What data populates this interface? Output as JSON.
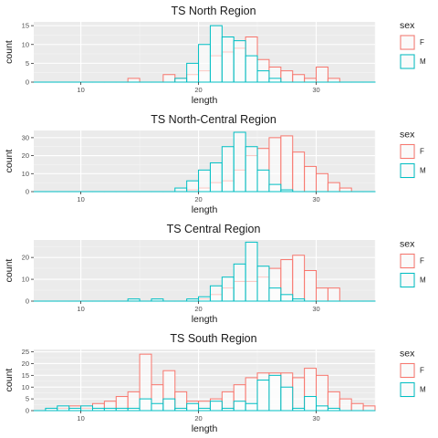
{
  "colors": {
    "F": "#F8766D",
    "M": "#00BFC4",
    "panel": "#EBEBEB",
    "grid_major": "#FFFFFF",
    "grid_minor": "#F5F5F5"
  },
  "chart_data": [
    {
      "type": "bar",
      "title": "TS North Region",
      "xlabel": "length",
      "ylabel": "count",
      "xlim": [
        6,
        35
      ],
      "ylim": [
        0,
        16
      ],
      "x_ticks": [
        10,
        20,
        30
      ],
      "y_ticks": [
        0,
        5,
        10,
        15
      ],
      "bin_width": 1,
      "bin_starts": [
        6,
        7,
        8,
        9,
        10,
        11,
        12,
        13,
        14,
        15,
        16,
        17,
        18,
        19,
        20,
        21,
        22,
        23,
        24,
        25,
        26,
        27,
        28,
        29,
        30,
        31,
        32,
        33,
        34
      ],
      "legend": {
        "title": "sex",
        "position": "right"
      },
      "series": [
        {
          "name": "F",
          "values": [
            0,
            0,
            0,
            0,
            0,
            0,
            0,
            0,
            1,
            0,
            0,
            2,
            1,
            2,
            3,
            7,
            8,
            9,
            12,
            6,
            4,
            3,
            2,
            1,
            4,
            1,
            0,
            0,
            0
          ]
        },
        {
          "name": "M",
          "values": [
            0,
            0,
            0,
            0,
            0,
            0,
            0,
            0,
            0,
            0,
            0,
            0,
            1,
            5,
            10,
            15,
            12,
            11,
            7,
            3,
            1,
            0,
            0,
            0,
            0,
            0,
            0,
            0,
            0
          ]
        }
      ]
    },
    {
      "type": "bar",
      "title": "TS North-Central Region",
      "xlabel": "length",
      "ylabel": "count",
      "xlim": [
        6,
        35
      ],
      "ylim": [
        0,
        34
      ],
      "x_ticks": [
        10,
        20,
        30
      ],
      "y_ticks": [
        0,
        10,
        20,
        30
      ],
      "bin_width": 1,
      "bin_starts": [
        6,
        7,
        8,
        9,
        10,
        11,
        12,
        13,
        14,
        15,
        16,
        17,
        18,
        19,
        20,
        21,
        22,
        23,
        24,
        25,
        26,
        27,
        28,
        29,
        30,
        31,
        32,
        33,
        34
      ],
      "legend": {
        "title": "sex",
        "position": "right"
      },
      "series": [
        {
          "name": "F",
          "values": [
            0,
            0,
            0,
            0,
            0,
            0,
            0,
            0,
            0,
            0,
            0,
            0,
            0,
            1,
            2,
            5,
            6,
            12,
            20,
            24,
            30,
            31,
            22,
            14,
            10,
            5,
            2,
            0,
            0
          ]
        },
        {
          "name": "M",
          "values": [
            0,
            0,
            0,
            0,
            0,
            0,
            0,
            0,
            0,
            0,
            0,
            0,
            2,
            6,
            12,
            16,
            25,
            33,
            25,
            12,
            4,
            1,
            0,
            0,
            0,
            0,
            0,
            0,
            0
          ]
        }
      ]
    },
    {
      "type": "bar",
      "title": "TS Central Region",
      "xlabel": "length",
      "ylabel": "count",
      "xlim": [
        6,
        35
      ],
      "ylim": [
        0,
        28
      ],
      "x_ticks": [
        10,
        20,
        30
      ],
      "y_ticks": [
        0,
        10,
        20
      ],
      "bin_width": 1,
      "bin_starts": [
        6,
        7,
        8,
        9,
        10,
        11,
        12,
        13,
        14,
        15,
        16,
        17,
        18,
        19,
        20,
        21,
        22,
        23,
        24,
        25,
        26,
        27,
        28,
        29,
        30,
        31,
        32,
        33,
        34
      ],
      "legend": {
        "title": "sex",
        "position": "right"
      },
      "series": [
        {
          "name": "F",
          "values": [
            0,
            0,
            0,
            0,
            0,
            0,
            0,
            0,
            0,
            0,
            0,
            0,
            0,
            0,
            1,
            3,
            6,
            9,
            9,
            11,
            15,
            19,
            21,
            14,
            6,
            6,
            0,
            0,
            0
          ]
        },
        {
          "name": "M",
          "values": [
            0,
            0,
            0,
            0,
            0,
            0,
            0,
            0,
            1,
            0,
            1,
            0,
            0,
            1,
            2,
            7,
            11,
            17,
            27,
            16,
            6,
            3,
            1,
            0,
            0,
            0,
            0,
            0,
            0
          ]
        }
      ]
    },
    {
      "type": "bar",
      "title": "TS South Region",
      "xlabel": "length",
      "ylabel": "count",
      "xlim": [
        6,
        35
      ],
      "ylim": [
        0,
        26
      ],
      "x_ticks": [
        10,
        20,
        30
      ],
      "y_ticks": [
        0,
        5,
        10,
        15,
        20,
        25
      ],
      "bin_width": 1,
      "bin_starts": [
        6,
        7,
        8,
        9,
        10,
        11,
        12,
        13,
        14,
        15,
        16,
        17,
        18,
        19,
        20,
        21,
        22,
        23,
        24,
        25,
        26,
        27,
        28,
        29,
        30,
        31,
        32,
        33,
        34
      ],
      "legend": {
        "title": "sex",
        "position": "right"
      },
      "series": [
        {
          "name": "F",
          "values": [
            0,
            0,
            1,
            2,
            1,
            3,
            4,
            6,
            8,
            24,
            11,
            17,
            8,
            4,
            4,
            5,
            8,
            11,
            14,
            16,
            16,
            16,
            14,
            18,
            15,
            8,
            5,
            3,
            2
          ]
        },
        {
          "name": "M",
          "values": [
            0,
            1,
            2,
            1,
            2,
            1,
            1,
            1,
            1,
            5,
            3,
            5,
            1,
            3,
            1,
            4,
            1,
            4,
            3,
            13,
            15,
            10,
            1,
            6,
            2,
            1,
            0,
            0,
            0
          ]
        }
      ]
    }
  ]
}
